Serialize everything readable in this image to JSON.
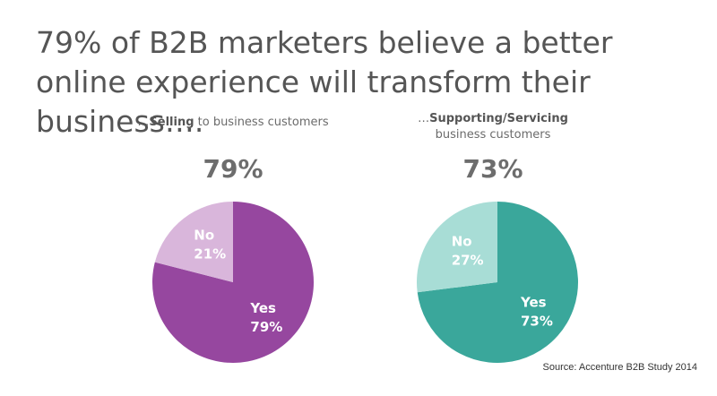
{
  "header": {
    "title": "79% of B2B marketers believe a better online experience will transform their business…."
  },
  "chart_data": [
    {
      "type": "pie",
      "subtitle_prefix": "…",
      "subtitle_bold": "Selling",
      "subtitle_rest": " to business customers",
      "headline": "79%",
      "slices": [
        {
          "label": "Yes",
          "value": 79,
          "value_label": "79%",
          "color": "#96479f"
        },
        {
          "label": "No",
          "value": 21,
          "value_label": "21%",
          "color": "#d9b6db"
        }
      ]
    },
    {
      "type": "pie",
      "subtitle_prefix": "…",
      "subtitle_bold": "Supporting/Servicing",
      "subtitle_rest": "business customers",
      "headline": "73%",
      "slices": [
        {
          "label": "Yes",
          "value": 73,
          "value_label": "73%",
          "color": "#3aa79b"
        },
        {
          "label": "No",
          "value": 27,
          "value_label": "27%",
          "color": "#a8ddd6"
        }
      ]
    }
  ],
  "footer": {
    "source": "Source: Accenture B2B Study 2014"
  }
}
